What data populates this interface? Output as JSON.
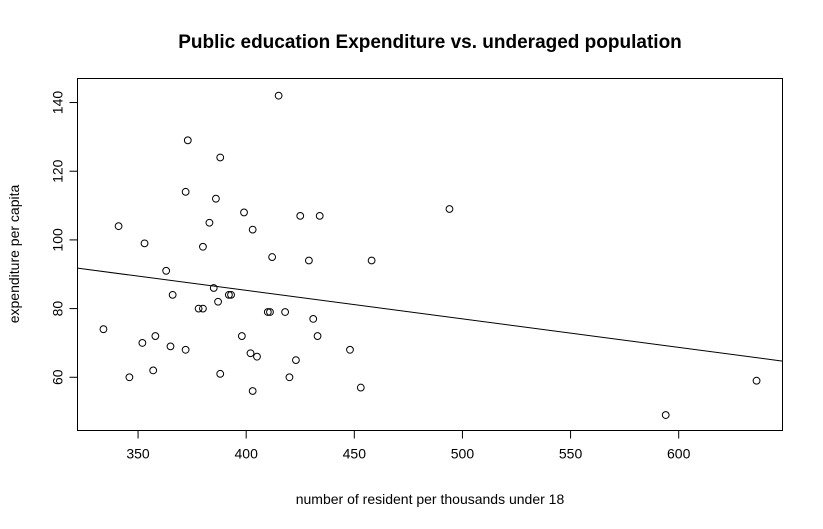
{
  "chart_data": {
    "type": "scatter",
    "title": "Public education Expenditure vs. underaged population",
    "xlabel": "number of resident per thousands under 18",
    "ylabel": "expenditure per capita",
    "xlim": [
      322,
      648
    ],
    "ylim": [
      44.5,
      147
    ],
    "xticks": [
      350,
      400,
      450,
      500,
      550,
      600
    ],
    "yticks": [
      60,
      80,
      100,
      120,
      140
    ],
    "grid": false,
    "x": [
      415,
      373,
      388,
      372,
      386,
      399,
      383,
      403,
      341,
      353,
      380,
      363,
      366,
      380,
      378,
      393,
      392,
      385,
      387,
      412,
      425,
      434,
      429,
      458,
      494,
      334,
      358,
      352,
      365,
      357,
      372,
      346,
      388,
      398,
      402,
      405,
      403,
      410,
      411,
      418,
      431,
      433,
      423,
      420,
      448,
      453,
      594,
      636
    ],
    "y": [
      142,
      129,
      124,
      114,
      112,
      108,
      105,
      103,
      104,
      99,
      98,
      91,
      84,
      80,
      80,
      84,
      84,
      86,
      82,
      95,
      107,
      107,
      94,
      94,
      109,
      74,
      72,
      70,
      69,
      62,
      68,
      60,
      61,
      72,
      67,
      66,
      56,
      79,
      79,
      79,
      77,
      72,
      65,
      60,
      68,
      57,
      49,
      59
    ],
    "fit_line": {
      "intercept": 118.5,
      "slope": -0.083
    }
  }
}
